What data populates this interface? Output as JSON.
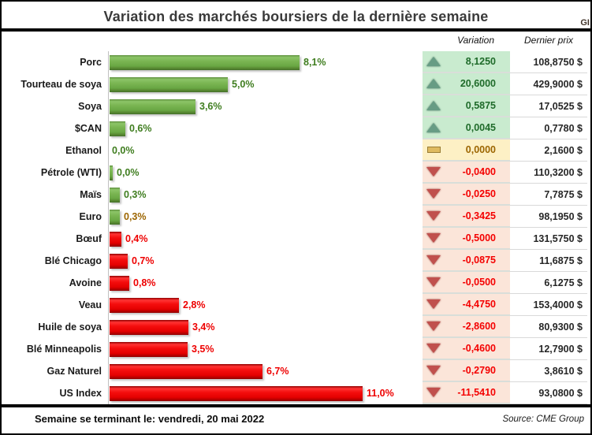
{
  "header": {
    "title": "Variation des marchés boursiers de la dernière semaine",
    "logo_fragment": "GI"
  },
  "table_headers": {
    "variation": "Variation",
    "last_price": "Dernier prix"
  },
  "footer": {
    "week_ending": "Semaine se terminant le: vendredi, 20 mai 2022",
    "source": "Source: CME Group"
  },
  "colors": {
    "bar_green": "#6aa844",
    "bar_red": "#e40000",
    "good_bg": "#c9ebcf",
    "good_text": "#1f6b2a",
    "neutral_bg": "#fdf0c5",
    "neutral_text": "#9c6500",
    "bad_bg": "#fbe5d9",
    "bad_text": "#f40000",
    "up_arrow": "#679c84",
    "down_arrow": "#c0504d",
    "flat_dash": "#dfba5f"
  },
  "chart_data": {
    "type": "bar",
    "orientation": "horizontal",
    "title": "Variation des marchés boursiers de la dernière semaine",
    "value_unit": "percent",
    "xlim": [
      0,
      13.7
    ],
    "grid": false,
    "legend": false,
    "rows": [
      {
        "label": "Porc",
        "pct_label": "8,1%",
        "bar_pct": 8.25,
        "bar_color": "green",
        "pct_color": "green",
        "trend": "up",
        "tone": "good",
        "variation": "8,1250",
        "last_price": "108,8750 $"
      },
      {
        "label": "Tourteau de soya",
        "pct_label": "5,0%",
        "bar_pct": 5.15,
        "bar_color": "green",
        "pct_color": "green",
        "trend": "up",
        "tone": "good",
        "variation": "20,6000",
        "last_price": "429,9000 $"
      },
      {
        "label": "Soya",
        "pct_label": "3,6%",
        "bar_pct": 3.75,
        "bar_color": "green",
        "pct_color": "green",
        "trend": "up",
        "tone": "good",
        "variation": "0,5875",
        "last_price": "17,0525 $"
      },
      {
        "label": "$CAN",
        "pct_label": "0,6%",
        "bar_pct": 0.7,
        "bar_color": "green",
        "pct_color": "green",
        "trend": "up",
        "tone": "good",
        "variation": "0,0045",
        "last_price": "0,7780 $"
      },
      {
        "label": "Ethanol",
        "pct_label": "0,0%",
        "bar_pct": 0,
        "bar_color": "none",
        "pct_color": "green",
        "trend": "flat",
        "tone": "neutral",
        "variation": "0,0000",
        "last_price": "2,1600 $"
      },
      {
        "label": "Pétrole (WTI)",
        "pct_label": "0,0%",
        "bar_pct": 0.12,
        "bar_color": "green",
        "pct_color": "green",
        "trend": "down",
        "tone": "bad",
        "variation": "-0,0400",
        "last_price": "110,3200 $"
      },
      {
        "label": "Maïs",
        "pct_label": "0,3%",
        "bar_pct": 0.45,
        "bar_color": "green",
        "pct_color": "green",
        "trend": "down",
        "tone": "bad",
        "variation": "-0,0250",
        "last_price": "7,7875 $"
      },
      {
        "label": "Euro",
        "pct_label": "0,3%",
        "bar_pct": 0.45,
        "bar_color": "green",
        "pct_color": "olive",
        "trend": "down",
        "tone": "bad",
        "variation": "-0,3425",
        "last_price": "98,1950 $"
      },
      {
        "label": "Bœuf",
        "pct_label": "0,4%",
        "bar_pct": 0.5,
        "bar_color": "red",
        "pct_color": "red",
        "trend": "down",
        "tone": "bad",
        "variation": "-0,5000",
        "last_price": "131,5750 $"
      },
      {
        "label": "Blé Chicago",
        "pct_label": "0,7%",
        "bar_pct": 0.8,
        "bar_color": "red",
        "pct_color": "red",
        "trend": "down",
        "tone": "bad",
        "variation": "-0,0875",
        "last_price": "11,6875 $"
      },
      {
        "label": "Avoine",
        "pct_label": "0,8%",
        "bar_pct": 0.85,
        "bar_color": "red",
        "pct_color": "red",
        "trend": "down",
        "tone": "bad",
        "variation": "-0,0500",
        "last_price": "6,1275 $"
      },
      {
        "label": "Veau",
        "pct_label": "2,8%",
        "bar_pct": 3.0,
        "bar_color": "red",
        "pct_color": "red",
        "trend": "down",
        "tone": "bad",
        "variation": "-4,4750",
        "last_price": "153,4000 $"
      },
      {
        "label": "Huile de soya",
        "pct_label": "3,4%",
        "bar_pct": 3.42,
        "bar_color": "red",
        "pct_color": "red",
        "trend": "down",
        "tone": "bad",
        "variation": "-2,8600",
        "last_price": "80,9300 $"
      },
      {
        "label": "Blé Minneapolis",
        "pct_label": "3,5%",
        "bar_pct": 3.4,
        "bar_color": "red",
        "pct_color": "red",
        "trend": "down",
        "tone": "bad",
        "variation": "-0,4600",
        "last_price": "12,7900 $"
      },
      {
        "label": "Gaz Naturel",
        "pct_label": "6,7%",
        "bar_pct": 6.65,
        "bar_color": "red",
        "pct_color": "red",
        "trend": "down",
        "tone": "bad",
        "variation": "-0,2790",
        "last_price": "3,8610 $"
      },
      {
        "label": "US Index",
        "pct_label": "11,0%",
        "bar_pct": 11.0,
        "bar_color": "red",
        "pct_color": "red",
        "trend": "down",
        "tone": "bad",
        "variation": "-11,5410",
        "last_price": "93,0800 $"
      }
    ]
  }
}
